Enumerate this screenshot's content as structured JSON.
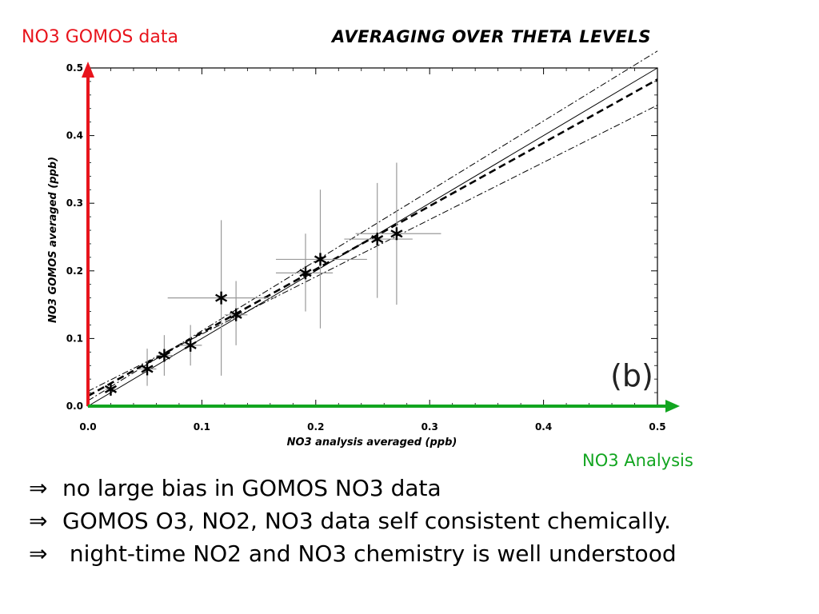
{
  "slide": {
    "title": "AVERAGING OVER THETA LEVELS",
    "y_label": "NO3 GOMOS data",
    "x_label": "NO3 Analysis",
    "arrow_symbol": "⇒",
    "bullets": [
      "no large bias in GOMOS NO3 data",
      "GOMOS O3, NO2, NO3 data self consistent chemically.",
      " night-time NO2 and NO3 chemistry is well understood"
    ]
  },
  "colors": {
    "y_arrow": "#e8141c",
    "x_arrow": "#12a520"
  },
  "chart_data": {
    "type": "scatter",
    "panel_label": "(b)",
    "xlabel": "NO3 analysis averaged (ppb)",
    "ylabel": "NO3 GOMOS averaged (ppb)",
    "xlim": [
      0.0,
      0.5
    ],
    "ylim": [
      0.0,
      0.5
    ],
    "xticks": [
      "0.0",
      "0.1",
      "0.2",
      "0.3",
      "0.4",
      "0.5"
    ],
    "yticks": [
      "0.0",
      "0.1",
      "0.2",
      "0.3",
      "0.4",
      "0.5"
    ],
    "grid": false,
    "points": [
      {
        "x": 0.02,
        "y": 0.025,
        "xerr": [
          0.015,
          0.025
        ],
        "yerr": [
          0.015,
          0.03
        ]
      },
      {
        "x": 0.052,
        "y": 0.055,
        "xerr": [
          0.045,
          0.06
        ],
        "yerr": [
          0.03,
          0.085
        ]
      },
      {
        "x": 0.067,
        "y": 0.075,
        "xerr": [
          0.06,
          0.075
        ],
        "yerr": [
          0.045,
          0.105
        ]
      },
      {
        "x": 0.09,
        "y": 0.09,
        "xerr": [
          0.08,
          0.1
        ],
        "yerr": [
          0.06,
          0.12
        ]
      },
      {
        "x": 0.117,
        "y": 0.16,
        "xerr": [
          0.07,
          0.165
        ],
        "yerr": [
          0.045,
          0.275
        ]
      },
      {
        "x": 0.13,
        "y": 0.135,
        "xerr": [
          0.12,
          0.14
        ],
        "yerr": [
          0.09,
          0.185
        ]
      },
      {
        "x": 0.191,
        "y": 0.197,
        "xerr": [
          0.165,
          0.215
        ],
        "yerr": [
          0.14,
          0.255
        ]
      },
      {
        "x": 0.204,
        "y": 0.217,
        "xerr": [
          0.165,
          0.245
        ],
        "yerr": [
          0.115,
          0.32
        ]
      },
      {
        "x": 0.254,
        "y": 0.247,
        "xerr": [
          0.225,
          0.285
        ],
        "yerr": [
          0.16,
          0.33
        ]
      },
      {
        "x": 0.271,
        "y": 0.255,
        "xerr": [
          0.235,
          0.31
        ],
        "yerr": [
          0.15,
          0.36
        ]
      }
    ],
    "lines": [
      {
        "style": "solid",
        "x": [
          0.0,
          0.5
        ],
        "y": [
          0.0,
          0.5
        ]
      },
      {
        "style": "dashed",
        "x": [
          0.0,
          0.5
        ],
        "y": [
          0.015,
          0.483
        ]
      },
      {
        "style": "dash-dot",
        "x": [
          0.0,
          0.5
        ],
        "y": [
          0.008,
          0.525
        ]
      },
      {
        "style": "dash-dot",
        "x": [
          0.0,
          0.5
        ],
        "y": [
          0.022,
          0.445
        ]
      }
    ]
  }
}
